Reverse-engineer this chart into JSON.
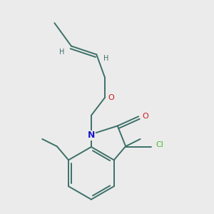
{
  "background_color": "#ebebeb",
  "bond_color": "#3d7068",
  "N_color": "#1a1acc",
  "O_color": "#cc1a1a",
  "Cl_color": "#44bb22",
  "H_color": "#3d7068",
  "figsize": [
    3.0,
    3.0
  ],
  "dpi": 100,
  "xlim": [
    0,
    10
  ],
  "ylim": [
    0,
    10
  ]
}
